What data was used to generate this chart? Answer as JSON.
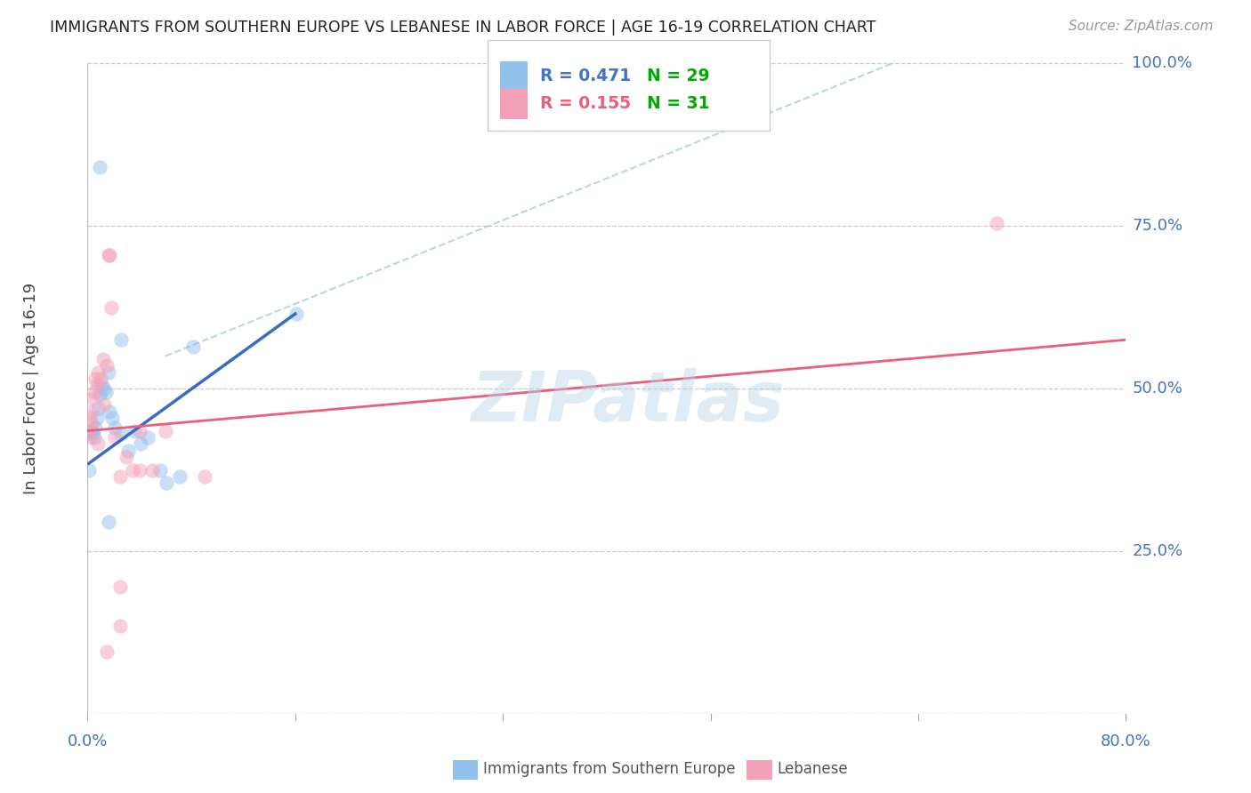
{
  "title": "IMMIGRANTS FROM SOUTHERN EUROPE VS LEBANESE IN LABOR FORCE | AGE 16-19 CORRELATION CHART",
  "source": "Source: ZipAtlas.com",
  "ylabel": "In Labor Force | Age 16-19",
  "y_ticks": [
    0.0,
    0.25,
    0.5,
    0.75,
    1.0
  ],
  "y_tick_labels": [
    "",
    "25.0%",
    "50.0%",
    "75.0%",
    "100.0%"
  ],
  "x_tick_labels": [
    "0.0%",
    "80.0%"
  ],
  "x_min": 0.0,
  "x_max": 0.8,
  "y_min": 0.0,
  "y_max": 1.0,
  "legend_r1_val": "0.471",
  "legend_n1_val": "29",
  "legend_r2_val": "0.155",
  "legend_n2_val": "31",
  "color_blue": "#92C1ED",
  "color_pink": "#F4A0B8",
  "color_blue_line": "#3A6BC4",
  "color_pink_line": "#E8607A",
  "color_text_blue": "#4472C4",
  "color_text_pink": "#E8607A",
  "color_text_r1": "#4472C4",
  "color_text_n1": "#00AA00",
  "color_text_r2": "#E8607A",
  "color_text_n2": "#00AA00",
  "watermark": "ZIPatlas",
  "blue_points": [
    [
      0.002,
      0.435
    ],
    [
      0.003,
      0.435
    ],
    [
      0.004,
      0.43
    ],
    [
      0.005,
      0.425
    ],
    [
      0.006,
      0.44
    ],
    [
      0.007,
      0.455
    ],
    [
      0.008,
      0.47
    ],
    [
      0.009,
      0.49
    ],
    [
      0.011,
      0.505
    ],
    [
      0.013,
      0.5
    ],
    [
      0.014,
      0.495
    ],
    [
      0.016,
      0.525
    ],
    [
      0.017,
      0.465
    ],
    [
      0.019,
      0.455
    ],
    [
      0.021,
      0.44
    ],
    [
      0.026,
      0.43
    ],
    [
      0.031,
      0.405
    ],
    [
      0.036,
      0.435
    ],
    [
      0.041,
      0.415
    ],
    [
      0.046,
      0.425
    ],
    [
      0.056,
      0.375
    ],
    [
      0.061,
      0.355
    ],
    [
      0.071,
      0.365
    ],
    [
      0.016,
      0.295
    ],
    [
      0.026,
      0.575
    ],
    [
      0.009,
      0.84
    ],
    [
      0.081,
      0.565
    ],
    [
      0.161,
      0.615
    ],
    [
      0.001,
      0.375
    ]
  ],
  "pink_points": [
    [
      0.001,
      0.435
    ],
    [
      0.002,
      0.455
    ],
    [
      0.003,
      0.465
    ],
    [
      0.004,
      0.485
    ],
    [
      0.005,
      0.495
    ],
    [
      0.006,
      0.515
    ],
    [
      0.007,
      0.505
    ],
    [
      0.008,
      0.525
    ],
    [
      0.01,
      0.515
    ],
    [
      0.012,
      0.545
    ],
    [
      0.013,
      0.475
    ],
    [
      0.015,
      0.535
    ],
    [
      0.016,
      0.705
    ],
    [
      0.017,
      0.705
    ],
    [
      0.018,
      0.625
    ],
    [
      0.021,
      0.425
    ],
    [
      0.025,
      0.365
    ],
    [
      0.03,
      0.395
    ],
    [
      0.035,
      0.375
    ],
    [
      0.04,
      0.375
    ],
    [
      0.05,
      0.375
    ],
    [
      0.09,
      0.365
    ],
    [
      0.025,
      0.195
    ],
    [
      0.025,
      0.135
    ],
    [
      0.015,
      0.095
    ],
    [
      0.04,
      0.435
    ],
    [
      0.06,
      0.435
    ],
    [
      0.7,
      0.755
    ],
    [
      0.003,
      0.445
    ],
    [
      0.002,
      0.425
    ],
    [
      0.008,
      0.415
    ]
  ],
  "blue_line_x": [
    0.001,
    0.16
  ],
  "blue_line_y": [
    0.385,
    0.615
  ],
  "pink_line_x": [
    0.0,
    0.8
  ],
  "pink_line_y": [
    0.435,
    0.575
  ],
  "diag_line_x": [
    0.06,
    0.62
  ],
  "diag_line_y": [
    0.55,
    1.0
  ],
  "bg_color": "#FFFFFF",
  "grid_color": "#CCCCCC",
  "marker_size": 140,
  "marker_alpha": 0.5,
  "legend_label1": "Immigrants from Southern Europe",
  "legend_label2": "Lebanese"
}
